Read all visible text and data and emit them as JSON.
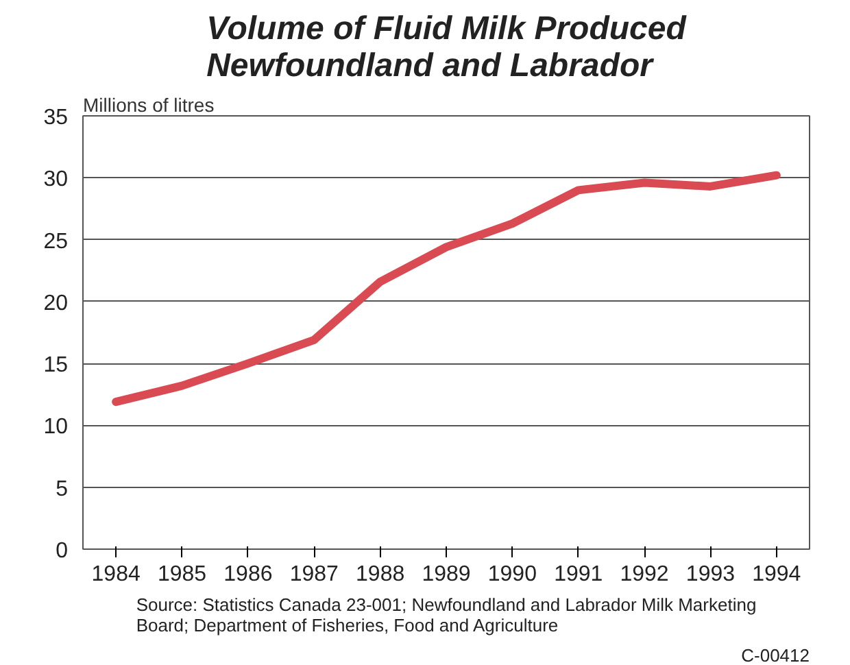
{
  "chart_data": {
    "type": "line",
    "title": "Volume of Fluid Milk Produced\nNewfoundland and Labrador",
    "ylabel": "Millions of litres",
    "categories": [
      "1984",
      "1985",
      "1986",
      "1987",
      "1988",
      "1989",
      "1990",
      "1991",
      "1992",
      "1993",
      "1994"
    ],
    "series": [
      {
        "color": "#d94a52",
        "values": [
          11.9,
          13.2,
          15.0,
          16.9,
          21.6,
          24.4,
          26.3,
          29.0,
          29.6,
          29.3,
          30.2
        ]
      }
    ],
    "ylim": [
      0,
      35
    ],
    "yticks": [
      0,
      5,
      10,
      15,
      20,
      25,
      30,
      35
    ],
    "grid": "y",
    "marker": "none",
    "line_style": "solid",
    "annotations": [
      "Source: Statistics Canada 23-001; Newfoundland and Labrador Milk Marketing\nBoard; Department of Fisheries, Food and Agriculture",
      "C-00412"
    ]
  }
}
